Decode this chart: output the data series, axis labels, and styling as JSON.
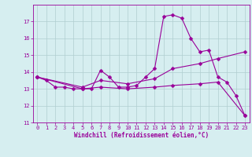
{
  "xlabel": "Windchill (Refroidissement éolien,°C)",
  "background_color": "#d6eef0",
  "grid_color": "#b0cdd0",
  "line_color": "#990099",
  "xlim": [
    -0.5,
    23.5
  ],
  "ylim": [
    11,
    18
  ],
  "yticks": [
    11,
    12,
    13,
    14,
    15,
    16,
    17
  ],
  "xticks": [
    0,
    1,
    2,
    3,
    4,
    5,
    6,
    7,
    8,
    9,
    10,
    11,
    12,
    13,
    14,
    15,
    16,
    17,
    18,
    19,
    20,
    21,
    22,
    23
  ],
  "curve1_x": [
    0,
    1,
    2,
    3,
    4,
    5,
    6,
    7,
    8,
    9,
    10,
    11,
    12,
    13,
    14,
    15,
    16,
    17,
    18,
    19,
    20,
    21,
    22,
    23
  ],
  "curve1_y": [
    13.7,
    13.5,
    13.1,
    13.1,
    13.0,
    13.0,
    13.0,
    14.1,
    13.7,
    13.1,
    13.1,
    13.2,
    13.7,
    14.2,
    17.3,
    17.4,
    17.2,
    16.0,
    15.2,
    15.3,
    13.7,
    13.4,
    12.6,
    11.4
  ],
  "curve2_x": [
    0,
    5,
    7,
    10,
    13,
    15,
    18,
    20,
    23
  ],
  "curve2_y": [
    13.7,
    13.1,
    13.5,
    13.3,
    13.6,
    14.2,
    14.5,
    14.8,
    15.2
  ],
  "curve3_x": [
    0,
    5,
    7,
    10,
    13,
    15,
    18,
    20,
    23
  ],
  "curve3_y": [
    13.7,
    13.0,
    13.1,
    13.0,
    13.1,
    13.2,
    13.3,
    13.4,
    11.4
  ],
  "markersize": 2.5,
  "linewidth": 0.8,
  "tick_fontsize": 5.0,
  "label_fontsize": 5.5
}
